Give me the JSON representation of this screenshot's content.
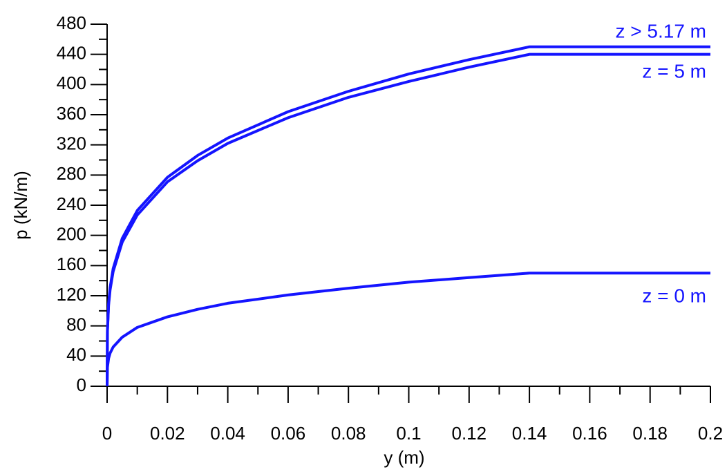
{
  "chart_data": {
    "type": "line",
    "x_label": "y (m)",
    "y_label": "p (kN/m)",
    "x": [
      0,
      0.0001,
      0.0005,
      0.001,
      0.002,
      0.005,
      0.01,
      0.02,
      0.03,
      0.04,
      0.06,
      0.08,
      0.1,
      0.12,
      0.14,
      0.2
    ],
    "series": [
      {
        "name": "z > 5.17 m",
        "color": "#1414ff",
        "values": [
          0,
          74,
          110,
          131,
          156,
          196,
          233,
          277,
          306,
          329,
          364,
          391,
          414,
          433,
          450,
          450
        ]
      },
      {
        "name": "z = 5 m",
        "color": "#1414ff",
        "values": [
          0,
          72,
          108,
          128,
          152,
          191,
          227,
          271,
          299,
          322,
          356,
          383,
          404,
          423,
          440,
          440
        ]
      },
      {
        "name": "z = 0 m",
        "color": "#1414ff",
        "values": [
          0,
          25,
          37,
          44,
          52,
          65,
          78,
          92,
          102,
          110,
          121,
          130,
          138,
          144,
          150,
          150
        ]
      }
    ],
    "xlim": [
      0,
      0.2
    ],
    "xticks": [
      0,
      0.02,
      0.04,
      0.06,
      0.08,
      0.1,
      0.12,
      0.14,
      0.16,
      0.18,
      0.2
    ],
    "ylim": [
      0,
      480
    ],
    "yticks": [
      0,
      40,
      80,
      120,
      160,
      200,
      240,
      280,
      320,
      360,
      400,
      440,
      480
    ],
    "grid": false
  }
}
